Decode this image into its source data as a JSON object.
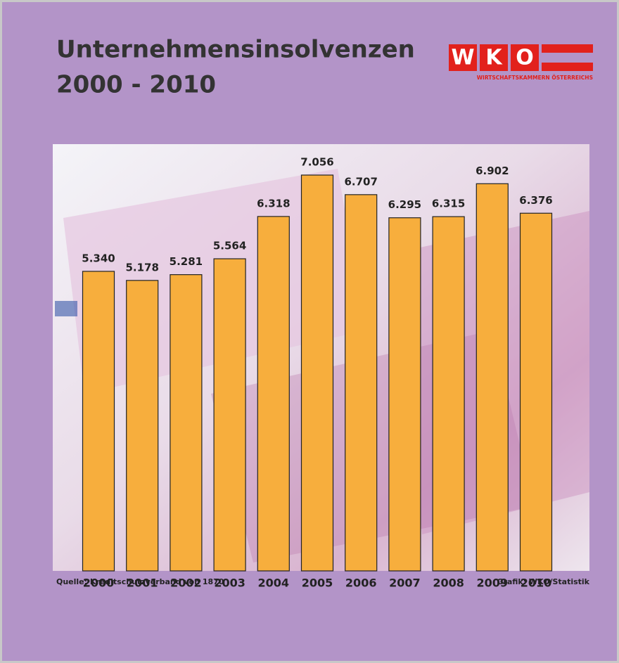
{
  "chart_data": {
    "type": "bar",
    "title": [
      "Unternehmensinsolvenzen",
      "2000 - 2010"
    ],
    "categories": [
      "2000",
      "2001",
      "2002",
      "2003",
      "2004",
      "2005",
      "2006",
      "2007",
      "2008",
      "2009",
      "2010"
    ],
    "values": [
      5340,
      5178,
      5281,
      5564,
      6318,
      7056,
      6707,
      6295,
      6315,
      6902,
      6376
    ],
    "value_labels": [
      "5.340",
      "5.178",
      "5.281",
      "5.564",
      "6.318",
      "7.056",
      "6.707",
      "6.295",
      "6.315",
      "6.902",
      "6.376"
    ],
    "color": "#f7ae3d",
    "source": "Quelle: Kreditschutzverband von 1870",
    "credit": "Grafik: WKO/Statistik"
  },
  "logo": {
    "letters": [
      "W",
      "K",
      "O"
    ],
    "tagline": "WIRTSCHAFTSKAMMERN ÖSTERREICHS"
  }
}
